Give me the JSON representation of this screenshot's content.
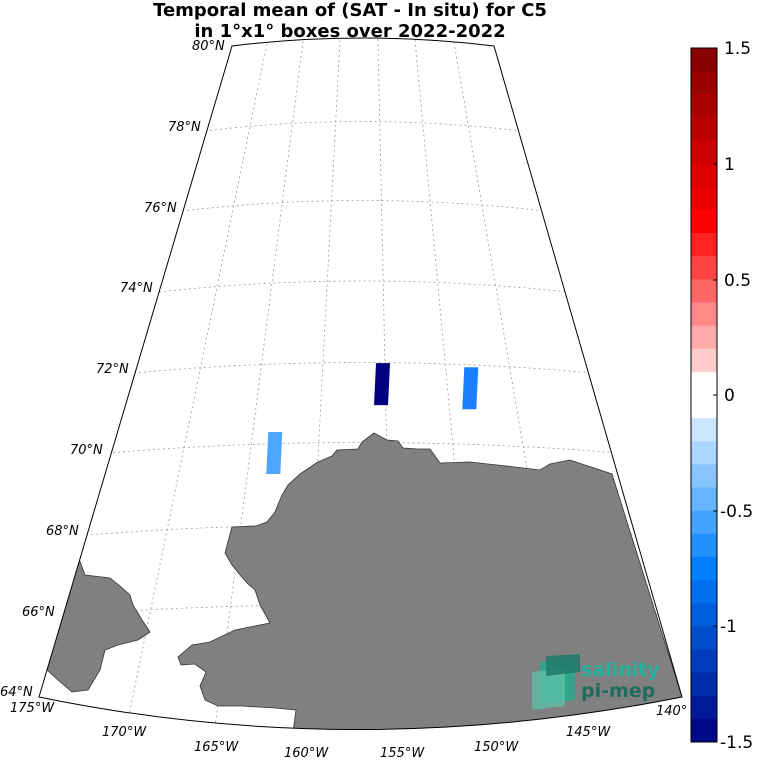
{
  "title": {
    "line1": "Temporal mean of (SAT - In situ) for C5",
    "line2": "in 1°x1° boxes over 2022-2022"
  },
  "lat_labels": [
    "80°N",
    "78°N",
    "76°N",
    "74°N",
    "72°N",
    "70°N",
    "68°N",
    "66°N",
    "64°N"
  ],
  "lon_labels": [
    "175°W",
    "170°W",
    "165°W",
    "160°W",
    "155°W",
    "150°W",
    "145°W",
    "140°"
  ],
  "colorbar": {
    "ticks": [
      "1.5",
      "1",
      "0.5",
      "0",
      "-0.5",
      "-1",
      "-1.5"
    ],
    "range": [
      -1.5,
      1.5
    ],
    "colors": {
      "max": "#7f0000",
      "mid": "#ffffff",
      "min": "#00007f"
    }
  },
  "chart_data": {
    "type": "heatmap",
    "projection": "polar conic map",
    "lat_range": [
      64,
      80
    ],
    "lon_range": [
      -175,
      -140
    ],
    "boxes": [
      {
        "lat": 70.0,
        "lon": -163.5,
        "value": -0.55,
        "color": "#4da6ff"
      },
      {
        "lat": 71.7,
        "lon": -157.5,
        "value": -1.5,
        "color": "#000080"
      },
      {
        "lat": 71.6,
        "lon": -152.5,
        "value": -0.75,
        "color": "#1a80ff"
      }
    ],
    "land_color": "#808080"
  },
  "logo": {
    "line1": "salinity",
    "line2": "pi-mep"
  }
}
